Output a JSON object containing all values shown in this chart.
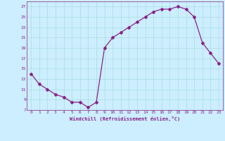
{
  "x": [
    0,
    1,
    2,
    3,
    4,
    5,
    6,
    7,
    8,
    9,
    10,
    11,
    12,
    13,
    14,
    15,
    16,
    17,
    18,
    19,
    20,
    21,
    22,
    23
  ],
  "y": [
    14,
    12,
    11,
    10,
    9.5,
    8.5,
    8.5,
    7.5,
    8.5,
    19,
    21,
    22,
    23,
    24,
    25,
    26,
    26.5,
    26.5,
    27,
    26.5,
    25,
    20,
    18,
    16
  ],
  "line_color": "#882288",
  "marker": "D",
  "marker_size": 2,
  "xlabel": "Windchill (Refroidissement éolien,°C)",
  "xlim": [
    -0.5,
    23.5
  ],
  "ylim": [
    7,
    28
  ],
  "yticks": [
    7,
    9,
    11,
    13,
    15,
    17,
    19,
    21,
    23,
    25,
    27
  ],
  "xticks": [
    0,
    1,
    2,
    3,
    4,
    5,
    6,
    7,
    8,
    9,
    10,
    11,
    12,
    13,
    14,
    15,
    16,
    17,
    18,
    19,
    20,
    21,
    22,
    23
  ],
  "bg_color": "#cceeff",
  "grid_color": "#aadddd",
  "text_color": "#882288"
}
